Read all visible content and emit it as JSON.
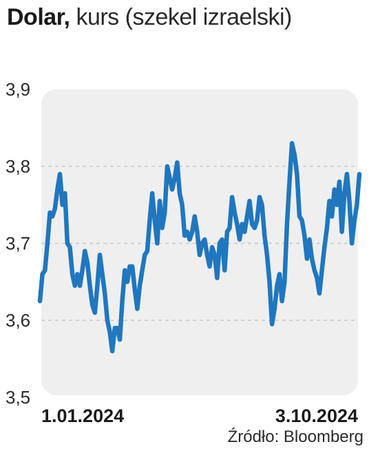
{
  "title": {
    "bold": "Dolar,",
    "rest": "kurs (szekel izraelski)"
  },
  "source": "Źródło: Bloomberg",
  "colors": {
    "line": "#1f77bf",
    "plot_bg": "#efefef",
    "grid": "#c9c9c9"
  },
  "chart_data": {
    "type": "line",
    "title": "Dolar, kurs (szekel izraelski)",
    "xlabel": "",
    "ylabel": "",
    "ylim": [
      3.5,
      3.9
    ],
    "y_ticks": [
      3.9,
      3.8,
      3.7,
      3.6,
      3.5
    ],
    "y_tick_labels": [
      "3,9",
      "3,8",
      "3,7",
      "3,6",
      "3,5"
    ],
    "gridlines": [
      3.8,
      3.7,
      3.6
    ],
    "x_tick_labels": [
      "1.01.2024",
      "3.10.2024"
    ],
    "series": [
      {
        "values": [
          3.625,
          3.66,
          3.665,
          3.7,
          3.74,
          3.735,
          3.745,
          3.77,
          3.79,
          3.75,
          3.765,
          3.7,
          3.695,
          3.66,
          3.645,
          3.66,
          3.645,
          3.665,
          3.69,
          3.675,
          3.645,
          3.62,
          3.61,
          3.645,
          3.685,
          3.66,
          3.635,
          3.6,
          3.585,
          3.56,
          3.59,
          3.59,
          3.575,
          3.625,
          3.665,
          3.65,
          3.67,
          3.67,
          3.64,
          3.615,
          3.645,
          3.665,
          3.685,
          3.69,
          3.73,
          3.765,
          3.73,
          3.7,
          3.755,
          3.72,
          3.74,
          3.8,
          3.785,
          3.77,
          3.785,
          3.805,
          3.765,
          3.75,
          3.71,
          3.715,
          3.705,
          3.715,
          3.735,
          3.715,
          3.685,
          3.7,
          3.705,
          3.685,
          3.67,
          3.695,
          3.685,
          3.655,
          3.7,
          3.705,
          3.665,
          3.715,
          3.72,
          3.76,
          3.74,
          3.725,
          3.705,
          3.725,
          3.715,
          3.735,
          3.755,
          3.725,
          3.72,
          3.73,
          3.76,
          3.75,
          3.71,
          3.685,
          3.65,
          3.595,
          3.615,
          3.645,
          3.66,
          3.625,
          3.65,
          3.725,
          3.78,
          3.83,
          3.815,
          3.79,
          3.735,
          3.73,
          3.71,
          3.68,
          3.705,
          3.68,
          3.665,
          3.655,
          3.635,
          3.665,
          3.695,
          3.72,
          3.755,
          3.735,
          3.77,
          3.75,
          3.78,
          3.715,
          3.765,
          3.79,
          3.755,
          3.7,
          3.73,
          3.75,
          3.79
        ]
      }
    ]
  }
}
